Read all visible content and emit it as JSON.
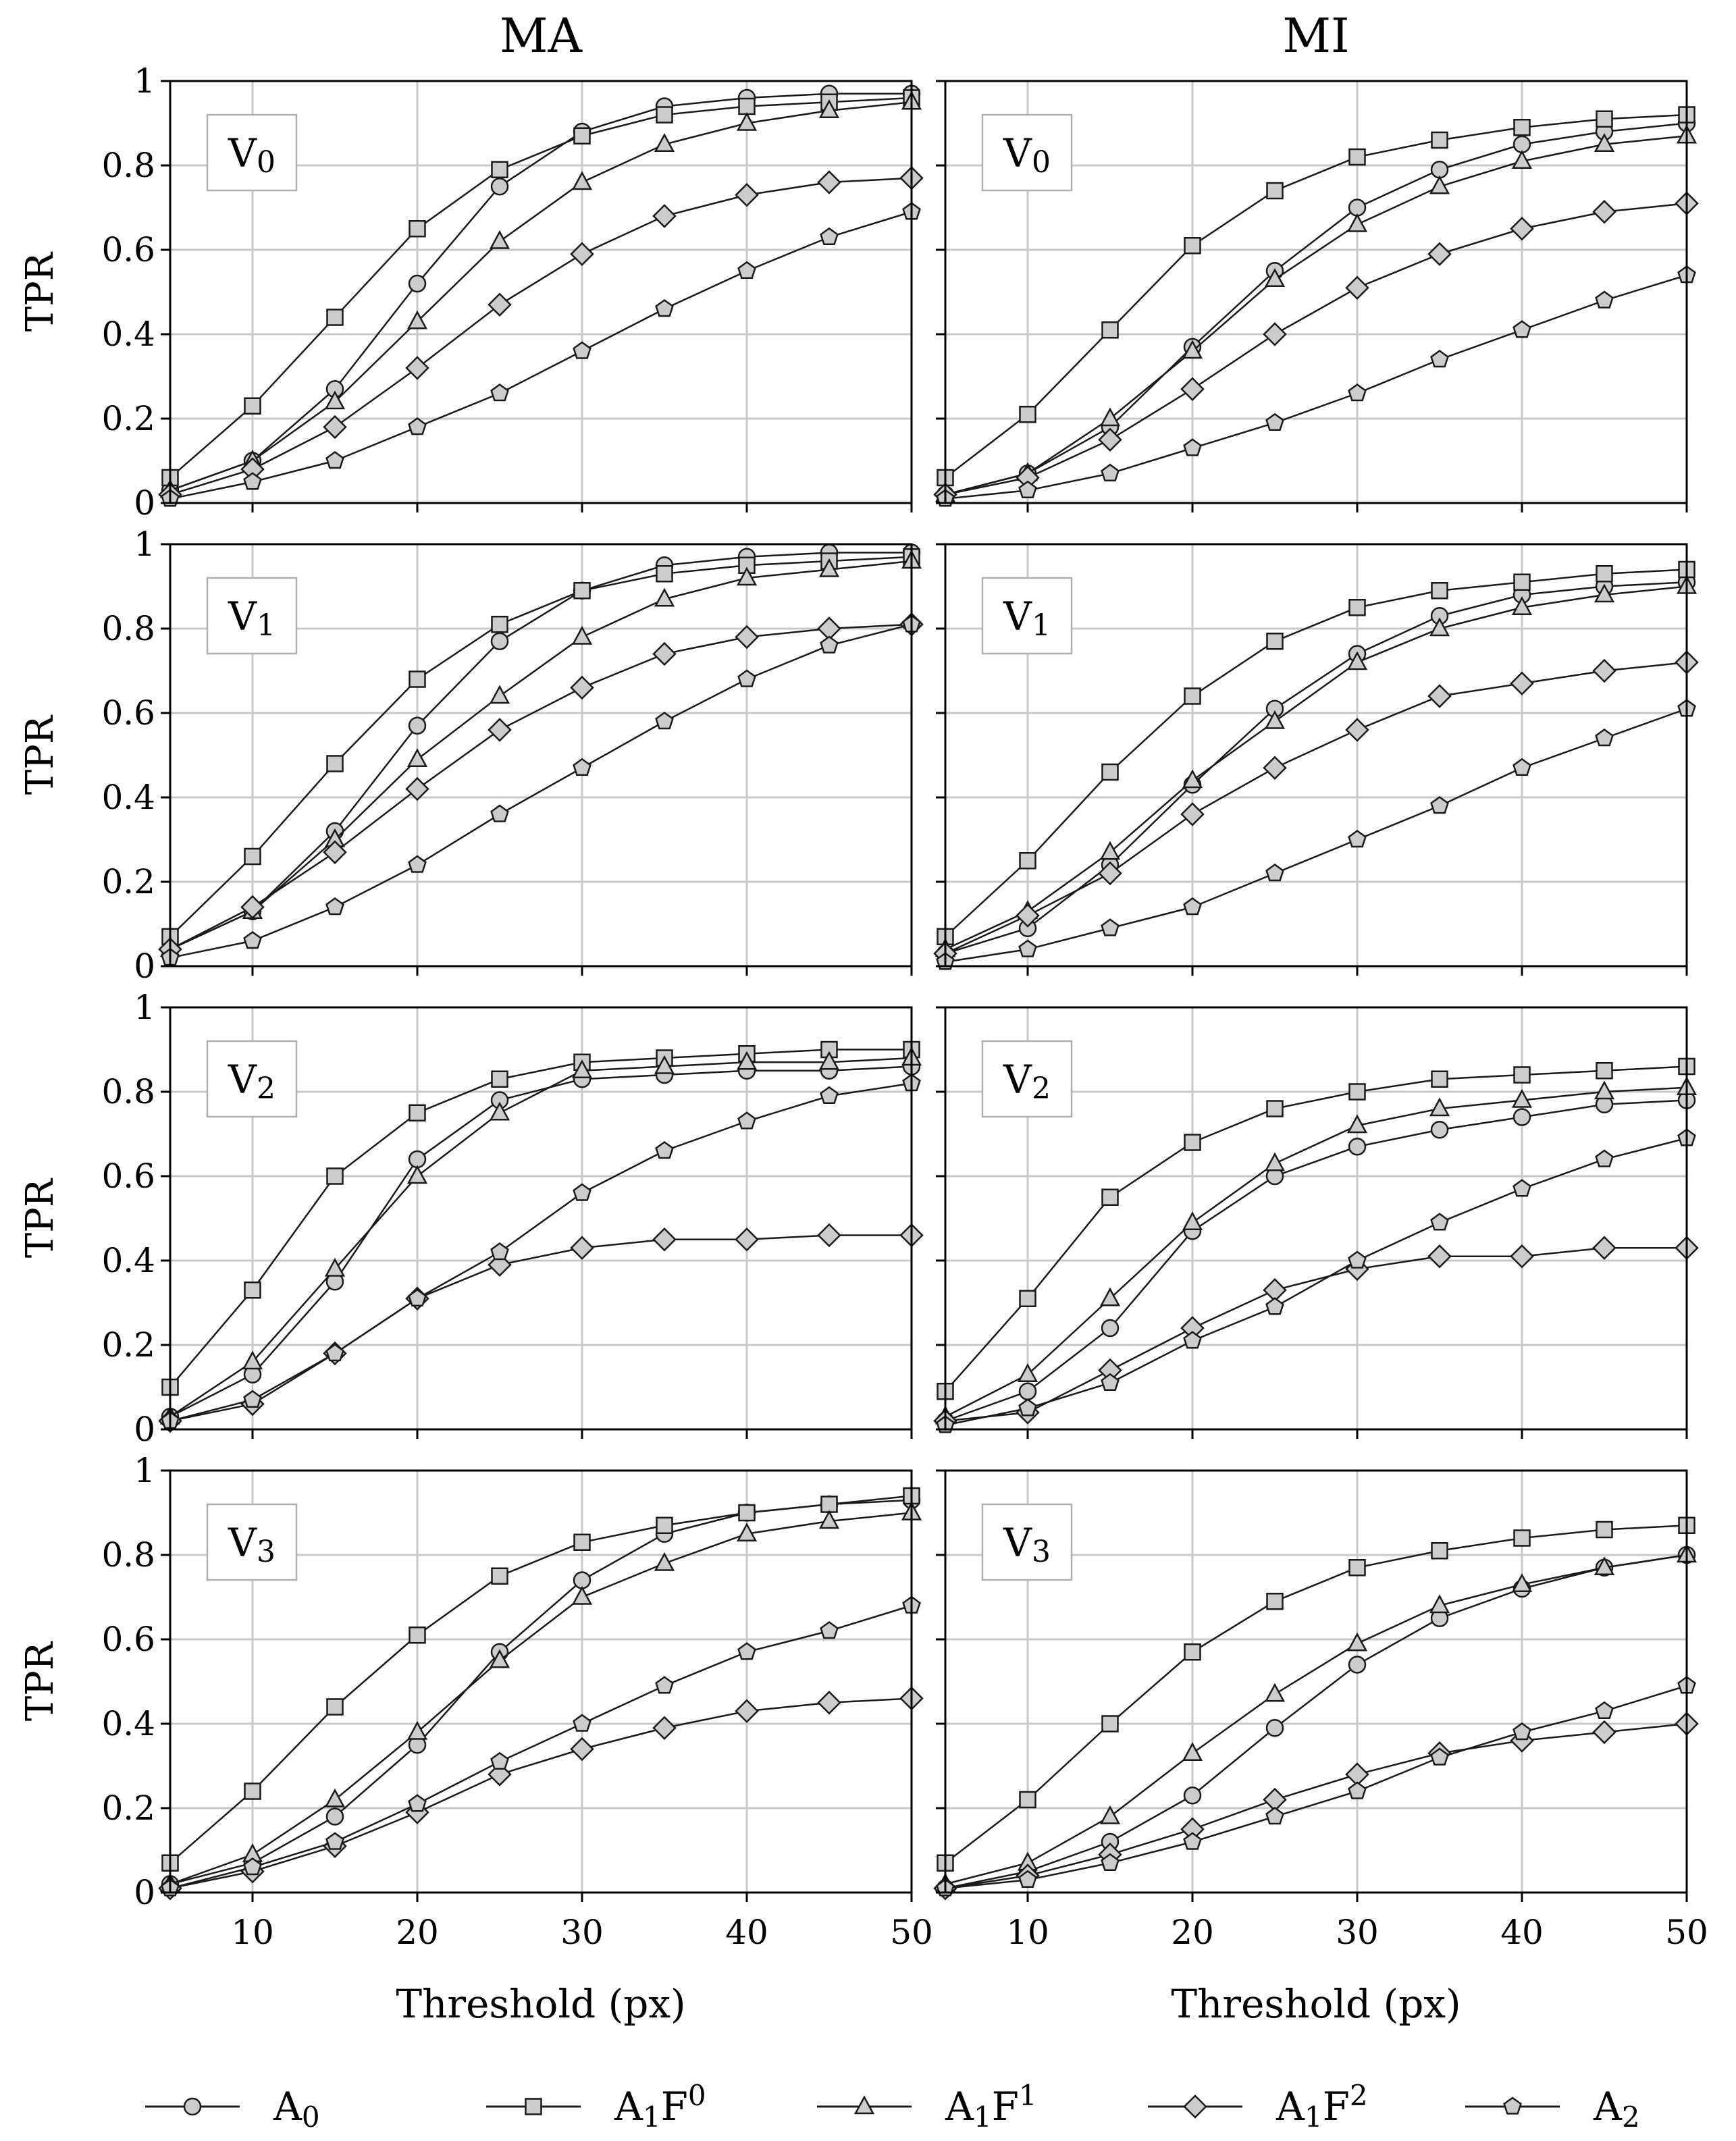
{
  "figure": {
    "column_titles": [
      "MA",
      "MI"
    ],
    "ylabel": "TPR",
    "xlabel": "Threshold (px)",
    "x_ticks": [
      "10",
      "20",
      "30",
      "40",
      "50"
    ],
    "y_ticks": [
      "0",
      "0.2",
      "0.4",
      "0.6",
      "0.8",
      "1"
    ],
    "legend": [
      {
        "label": "A",
        "sub": "0",
        "sup": "",
        "marker": "circle"
      },
      {
        "label": "A",
        "sub": "1",
        "sup": "F",
        "sup2": "0",
        "marker": "square"
      },
      {
        "label": "A",
        "sub": "1",
        "sup": "F",
        "sup2": "1",
        "marker": "triangle"
      },
      {
        "label": "A",
        "sub": "1",
        "sup": "F",
        "sup2": "2",
        "marker": "diamond"
      },
      {
        "label": "A",
        "sub": "2",
        "sup": "",
        "marker": "pentagon"
      }
    ]
  },
  "chart_data": [
    {
      "type": "line",
      "panel": "MA",
      "badge": "V",
      "badge_sub": "0",
      "xlim": [
        5,
        50
      ],
      "ylim": [
        0,
        1
      ],
      "grid": true,
      "x": [
        5,
        10,
        15,
        20,
        25,
        30,
        35,
        40,
        45,
        50
      ],
      "series": [
        {
          "name": "A0",
          "marker": "circle",
          "values": [
            0.03,
            0.1,
            0.27,
            0.52,
            0.75,
            0.88,
            0.94,
            0.96,
            0.97,
            0.97
          ]
        },
        {
          "name": "A1F0",
          "marker": "square",
          "values": [
            0.06,
            0.23,
            0.44,
            0.65,
            0.79,
            0.87,
            0.92,
            0.94,
            0.95,
            0.96
          ]
        },
        {
          "name": "A1F1",
          "marker": "triangle",
          "values": [
            0.03,
            0.1,
            0.24,
            0.43,
            0.62,
            0.76,
            0.85,
            0.9,
            0.93,
            0.95
          ]
        },
        {
          "name": "A1F2",
          "marker": "diamond",
          "values": [
            0.02,
            0.08,
            0.18,
            0.32,
            0.47,
            0.59,
            0.68,
            0.73,
            0.76,
            0.77
          ]
        },
        {
          "name": "A2",
          "marker": "pentagon",
          "values": [
            0.01,
            0.05,
            0.1,
            0.18,
            0.26,
            0.36,
            0.46,
            0.55,
            0.63,
            0.69
          ]
        }
      ]
    },
    {
      "type": "line",
      "panel": "MI",
      "badge": "V",
      "badge_sub": "0",
      "xlim": [
        5,
        50
      ],
      "ylim": [
        0,
        1
      ],
      "grid": true,
      "x": [
        5,
        10,
        15,
        20,
        25,
        30,
        35,
        40,
        45,
        50
      ],
      "series": [
        {
          "name": "A0",
          "marker": "circle",
          "values": [
            0.02,
            0.07,
            0.18,
            0.37,
            0.55,
            0.7,
            0.79,
            0.85,
            0.88,
            0.9
          ]
        },
        {
          "name": "A1F0",
          "marker": "square",
          "values": [
            0.06,
            0.21,
            0.41,
            0.61,
            0.74,
            0.82,
            0.86,
            0.89,
            0.91,
            0.92
          ]
        },
        {
          "name": "A1F1",
          "marker": "triangle",
          "values": [
            0.02,
            0.07,
            0.2,
            0.36,
            0.53,
            0.66,
            0.75,
            0.81,
            0.85,
            0.87
          ]
        },
        {
          "name": "A1F2",
          "marker": "diamond",
          "values": [
            0.02,
            0.06,
            0.15,
            0.27,
            0.4,
            0.51,
            0.59,
            0.65,
            0.69,
            0.71
          ]
        },
        {
          "name": "A2",
          "marker": "pentagon",
          "values": [
            0.01,
            0.03,
            0.07,
            0.13,
            0.19,
            0.26,
            0.34,
            0.41,
            0.48,
            0.54
          ]
        }
      ]
    },
    {
      "type": "line",
      "panel": "MA",
      "badge": "V",
      "badge_sub": "1",
      "xlim": [
        5,
        50
      ],
      "ylim": [
        0,
        1
      ],
      "grid": true,
      "x": [
        5,
        10,
        15,
        20,
        25,
        30,
        35,
        40,
        45,
        50
      ],
      "series": [
        {
          "name": "A0",
          "marker": "circle",
          "values": [
            0.04,
            0.13,
            0.32,
            0.57,
            0.77,
            0.89,
            0.95,
            0.97,
            0.98,
            0.98
          ]
        },
        {
          "name": "A1F0",
          "marker": "square",
          "values": [
            0.07,
            0.26,
            0.48,
            0.68,
            0.81,
            0.89,
            0.93,
            0.95,
            0.96,
            0.97
          ]
        },
        {
          "name": "A1F1",
          "marker": "triangle",
          "values": [
            0.04,
            0.13,
            0.3,
            0.49,
            0.64,
            0.78,
            0.87,
            0.92,
            0.94,
            0.96
          ]
        },
        {
          "name": "A1F2",
          "marker": "diamond",
          "values": [
            0.04,
            0.14,
            0.27,
            0.42,
            0.56,
            0.66,
            0.74,
            0.78,
            0.8,
            0.81
          ]
        },
        {
          "name": "A2",
          "marker": "pentagon",
          "values": [
            0.02,
            0.06,
            0.14,
            0.24,
            0.36,
            0.47,
            0.58,
            0.68,
            0.76,
            0.81
          ]
        }
      ]
    },
    {
      "type": "line",
      "panel": "MI",
      "badge": "V",
      "badge_sub": "1",
      "xlim": [
        5,
        50
      ],
      "ylim": [
        0,
        1
      ],
      "grid": true,
      "x": [
        5,
        10,
        15,
        20,
        25,
        30,
        35,
        40,
        45,
        50
      ],
      "series": [
        {
          "name": "A0",
          "marker": "circle",
          "values": [
            0.03,
            0.09,
            0.24,
            0.43,
            0.61,
            0.74,
            0.83,
            0.88,
            0.9,
            0.91
          ]
        },
        {
          "name": "A1F0",
          "marker": "square",
          "values": [
            0.07,
            0.25,
            0.46,
            0.64,
            0.77,
            0.85,
            0.89,
            0.91,
            0.93,
            0.94
          ]
        },
        {
          "name": "A1F1",
          "marker": "triangle",
          "values": [
            0.04,
            0.13,
            0.27,
            0.44,
            0.58,
            0.72,
            0.8,
            0.85,
            0.88,
            0.9
          ]
        },
        {
          "name": "A1F2",
          "marker": "diamond",
          "values": [
            0.03,
            0.12,
            0.22,
            0.36,
            0.47,
            0.56,
            0.64,
            0.67,
            0.7,
            0.72
          ]
        },
        {
          "name": "A2",
          "marker": "pentagon",
          "values": [
            0.01,
            0.04,
            0.09,
            0.14,
            0.22,
            0.3,
            0.38,
            0.47,
            0.54,
            0.61
          ]
        }
      ]
    },
    {
      "type": "line",
      "panel": "MA",
      "badge": "V",
      "badge_sub": "2",
      "xlim": [
        5,
        50
      ],
      "ylim": [
        0,
        1
      ],
      "grid": true,
      "x": [
        5,
        10,
        15,
        20,
        25,
        30,
        35,
        40,
        45,
        50
      ],
      "series": [
        {
          "name": "A0",
          "marker": "circle",
          "values": [
            0.03,
            0.13,
            0.35,
            0.64,
            0.78,
            0.83,
            0.84,
            0.85,
            0.85,
            0.86
          ]
        },
        {
          "name": "A1F0",
          "marker": "square",
          "values": [
            0.1,
            0.33,
            0.6,
            0.75,
            0.83,
            0.87,
            0.88,
            0.89,
            0.9,
            0.9
          ]
        },
        {
          "name": "A1F1",
          "marker": "triangle",
          "values": [
            0.03,
            0.16,
            0.38,
            0.6,
            0.75,
            0.85,
            0.86,
            0.87,
            0.87,
            0.88
          ]
        },
        {
          "name": "A1F2",
          "marker": "diamond",
          "values": [
            0.02,
            0.06,
            0.18,
            0.31,
            0.39,
            0.43,
            0.45,
            0.45,
            0.46,
            0.46
          ]
        },
        {
          "name": "A2",
          "marker": "pentagon",
          "values": [
            0.02,
            0.07,
            0.18,
            0.31,
            0.42,
            0.56,
            0.66,
            0.73,
            0.79,
            0.82
          ]
        }
      ]
    },
    {
      "type": "line",
      "panel": "MI",
      "badge": "V",
      "badge_sub": "2",
      "xlim": [
        5,
        50
      ],
      "ylim": [
        0,
        1
      ],
      "grid": true,
      "x": [
        5,
        10,
        15,
        20,
        25,
        30,
        35,
        40,
        45,
        50
      ],
      "series": [
        {
          "name": "A0",
          "marker": "circle",
          "values": [
            0.02,
            0.09,
            0.24,
            0.47,
            0.6,
            0.67,
            0.71,
            0.74,
            0.77,
            0.78
          ]
        },
        {
          "name": "A1F0",
          "marker": "square",
          "values": [
            0.09,
            0.31,
            0.55,
            0.68,
            0.76,
            0.8,
            0.83,
            0.84,
            0.85,
            0.86
          ]
        },
        {
          "name": "A1F1",
          "marker": "triangle",
          "values": [
            0.03,
            0.13,
            0.31,
            0.49,
            0.63,
            0.72,
            0.76,
            0.78,
            0.8,
            0.81
          ]
        },
        {
          "name": "A1F2",
          "marker": "diamond",
          "values": [
            0.02,
            0.04,
            0.14,
            0.24,
            0.33,
            0.38,
            0.41,
            0.41,
            0.43,
            0.43
          ]
        },
        {
          "name": "A2",
          "marker": "pentagon",
          "values": [
            0.01,
            0.05,
            0.11,
            0.21,
            0.29,
            0.4,
            0.49,
            0.57,
            0.64,
            0.69
          ]
        }
      ]
    },
    {
      "type": "line",
      "panel": "MA",
      "badge": "V",
      "badge_sub": "3",
      "xlim": [
        5,
        50
      ],
      "ylim": [
        0,
        1
      ],
      "grid": true,
      "x": [
        5,
        10,
        15,
        20,
        25,
        30,
        35,
        40,
        45,
        50
      ],
      "series": [
        {
          "name": "A0",
          "marker": "circle",
          "values": [
            0.02,
            0.07,
            0.18,
            0.35,
            0.57,
            0.74,
            0.85,
            0.9,
            0.92,
            0.93
          ]
        },
        {
          "name": "A1F0",
          "marker": "square",
          "values": [
            0.07,
            0.24,
            0.44,
            0.61,
            0.75,
            0.83,
            0.87,
            0.9,
            0.92,
            0.94
          ]
        },
        {
          "name": "A1F1",
          "marker": "triangle",
          "values": [
            0.02,
            0.09,
            0.22,
            0.38,
            0.55,
            0.7,
            0.78,
            0.85,
            0.88,
            0.9
          ]
        },
        {
          "name": "A1F2",
          "marker": "diamond",
          "values": [
            0.01,
            0.05,
            0.11,
            0.19,
            0.28,
            0.34,
            0.39,
            0.43,
            0.45,
            0.46
          ]
        },
        {
          "name": "A2",
          "marker": "pentagon",
          "values": [
            0.01,
            0.06,
            0.12,
            0.21,
            0.31,
            0.4,
            0.49,
            0.57,
            0.62,
            0.68
          ]
        }
      ]
    },
    {
      "type": "line",
      "panel": "MI",
      "badge": "V",
      "badge_sub": "3",
      "xlim": [
        5,
        50
      ],
      "ylim": [
        0,
        1
      ],
      "grid": true,
      "x": [
        5,
        10,
        15,
        20,
        25,
        30,
        35,
        40,
        45,
        50
      ],
      "series": [
        {
          "name": "A0",
          "marker": "circle",
          "values": [
            0.01,
            0.05,
            0.12,
            0.23,
            0.39,
            0.54,
            0.65,
            0.72,
            0.77,
            0.8
          ]
        },
        {
          "name": "A1F0",
          "marker": "square",
          "values": [
            0.07,
            0.22,
            0.4,
            0.57,
            0.69,
            0.77,
            0.81,
            0.84,
            0.86,
            0.87
          ]
        },
        {
          "name": "A1F1",
          "marker": "triangle",
          "values": [
            0.02,
            0.07,
            0.18,
            0.33,
            0.47,
            0.59,
            0.68,
            0.73,
            0.77,
            0.8
          ]
        },
        {
          "name": "A1F2",
          "marker": "diamond",
          "values": [
            0.01,
            0.04,
            0.09,
            0.15,
            0.22,
            0.28,
            0.33,
            0.36,
            0.38,
            0.4
          ]
        },
        {
          "name": "A2",
          "marker": "pentagon",
          "values": [
            0.01,
            0.03,
            0.07,
            0.12,
            0.18,
            0.24,
            0.32,
            0.38,
            0.43,
            0.49
          ]
        }
      ]
    }
  ]
}
